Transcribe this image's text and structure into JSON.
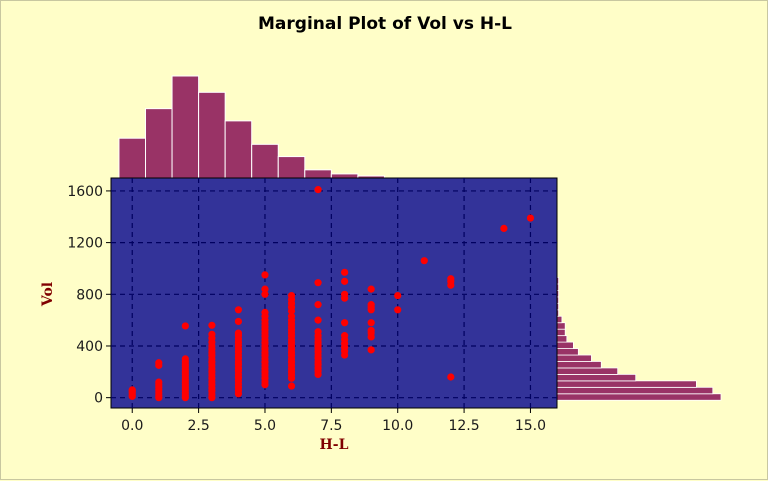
{
  "chart_data": {
    "type": "scatter",
    "title": "Marginal Plot of Vol vs H-L",
    "xlabel": "H-L",
    "ylabel": "Vol",
    "xlim": [
      -0.8,
      16.0
    ],
    "ylim": [
      -80,
      1700
    ],
    "x_ticks": [
      0.0,
      2.5,
      5.0,
      7.5,
      10.0,
      12.5,
      15.0
    ],
    "x_tick_labels": [
      "0.0",
      "2.5",
      "5.0",
      "7.5",
      "10.0",
      "12.5",
      "15.0"
    ],
    "y_ticks": [
      0,
      400,
      800,
      1200,
      1600
    ],
    "y_tick_labels": [
      "0",
      "400",
      "800",
      "1200",
      "1600"
    ],
    "grid": true,
    "colors": {
      "page_background": "#fffec8",
      "plot_background": "#333399",
      "points": "#ff0000",
      "histogram": "#993366",
      "axis_label": "#800000",
      "grid": "#000060"
    },
    "series": [
      {
        "points": [
          {
            "x": 0,
            "y": 10
          },
          {
            "x": 0,
            "y": 20
          },
          {
            "x": 0,
            "y": 35
          },
          {
            "x": 0,
            "y": 50
          },
          {
            "x": 0,
            "y": 60
          },
          {
            "x": 1,
            "y": 0
          },
          {
            "x": 1,
            "y": 20
          },
          {
            "x": 1,
            "y": 40
          },
          {
            "x": 1,
            "y": 60
          },
          {
            "x": 1,
            "y": 80
          },
          {
            "x": 1,
            "y": 100
          },
          {
            "x": 1,
            "y": 120
          },
          {
            "x": 1,
            "y": 250
          },
          {
            "x": 1,
            "y": 270
          },
          {
            "x": 2,
            "y": 0
          },
          {
            "x": 2,
            "y": 20
          },
          {
            "x": 2,
            "y": 40
          },
          {
            "x": 2,
            "y": 60
          },
          {
            "x": 2,
            "y": 80
          },
          {
            "x": 2,
            "y": 100
          },
          {
            "x": 2,
            "y": 120
          },
          {
            "x": 2,
            "y": 140
          },
          {
            "x": 2,
            "y": 160
          },
          {
            "x": 2,
            "y": 180
          },
          {
            "x": 2,
            "y": 200
          },
          {
            "x": 2,
            "y": 220
          },
          {
            "x": 2,
            "y": 240
          },
          {
            "x": 2,
            "y": 260
          },
          {
            "x": 2,
            "y": 280
          },
          {
            "x": 2,
            "y": 300
          },
          {
            "x": 2,
            "y": 555
          },
          {
            "x": 3,
            "y": 0
          },
          {
            "x": 3,
            "y": 25
          },
          {
            "x": 3,
            "y": 50
          },
          {
            "x": 3,
            "y": 75
          },
          {
            "x": 3,
            "y": 100
          },
          {
            "x": 3,
            "y": 125
          },
          {
            "x": 3,
            "y": 150
          },
          {
            "x": 3,
            "y": 175
          },
          {
            "x": 3,
            "y": 200
          },
          {
            "x": 3,
            "y": 225
          },
          {
            "x": 3,
            "y": 250
          },
          {
            "x": 3,
            "y": 275
          },
          {
            "x": 3,
            "y": 300
          },
          {
            "x": 3,
            "y": 325
          },
          {
            "x": 3,
            "y": 350
          },
          {
            "x": 3,
            "y": 375
          },
          {
            "x": 3,
            "y": 400
          },
          {
            "x": 3,
            "y": 430
          },
          {
            "x": 3,
            "y": 460
          },
          {
            "x": 3,
            "y": 490
          },
          {
            "x": 3,
            "y": 560
          },
          {
            "x": 4,
            "y": 30
          },
          {
            "x": 4,
            "y": 55
          },
          {
            "x": 4,
            "y": 80
          },
          {
            "x": 4,
            "y": 105
          },
          {
            "x": 4,
            "y": 130
          },
          {
            "x": 4,
            "y": 155
          },
          {
            "x": 4,
            "y": 180
          },
          {
            "x": 4,
            "y": 205
          },
          {
            "x": 4,
            "y": 230
          },
          {
            "x": 4,
            "y": 255
          },
          {
            "x": 4,
            "y": 280
          },
          {
            "x": 4,
            "y": 305
          },
          {
            "x": 4,
            "y": 330
          },
          {
            "x": 4,
            "y": 355
          },
          {
            "x": 4,
            "y": 380
          },
          {
            "x": 4,
            "y": 405
          },
          {
            "x": 4,
            "y": 430
          },
          {
            "x": 4,
            "y": 455
          },
          {
            "x": 4,
            "y": 480
          },
          {
            "x": 4,
            "y": 500
          },
          {
            "x": 4,
            "y": 590
          },
          {
            "x": 4,
            "y": 680
          },
          {
            "x": 5,
            "y": 100
          },
          {
            "x": 5,
            "y": 125
          },
          {
            "x": 5,
            "y": 150
          },
          {
            "x": 5,
            "y": 175
          },
          {
            "x": 5,
            "y": 200
          },
          {
            "x": 5,
            "y": 225
          },
          {
            "x": 5,
            "y": 250
          },
          {
            "x": 5,
            "y": 275
          },
          {
            "x": 5,
            "y": 300
          },
          {
            "x": 5,
            "y": 325
          },
          {
            "x": 5,
            "y": 350
          },
          {
            "x": 5,
            "y": 375
          },
          {
            "x": 5,
            "y": 400
          },
          {
            "x": 5,
            "y": 425
          },
          {
            "x": 5,
            "y": 450
          },
          {
            "x": 5,
            "y": 475
          },
          {
            "x": 5,
            "y": 500
          },
          {
            "x": 5,
            "y": 525
          },
          {
            "x": 5,
            "y": 550
          },
          {
            "x": 5,
            "y": 575
          },
          {
            "x": 5,
            "y": 600
          },
          {
            "x": 5,
            "y": 630
          },
          {
            "x": 5,
            "y": 660
          },
          {
            "x": 5,
            "y": 800
          },
          {
            "x": 5,
            "y": 840
          },
          {
            "x": 5,
            "y": 950
          },
          {
            "x": 6,
            "y": 90
          },
          {
            "x": 6,
            "y": 150
          },
          {
            "x": 6,
            "y": 175
          },
          {
            "x": 6,
            "y": 200
          },
          {
            "x": 6,
            "y": 225
          },
          {
            "x": 6,
            "y": 250
          },
          {
            "x": 6,
            "y": 275
          },
          {
            "x": 6,
            "y": 300
          },
          {
            "x": 6,
            "y": 325
          },
          {
            "x": 6,
            "y": 350
          },
          {
            "x": 6,
            "y": 375
          },
          {
            "x": 6,
            "y": 400
          },
          {
            "x": 6,
            "y": 425
          },
          {
            "x": 6,
            "y": 450
          },
          {
            "x": 6,
            "y": 475
          },
          {
            "x": 6,
            "y": 500
          },
          {
            "x": 6,
            "y": 525
          },
          {
            "x": 6,
            "y": 550
          },
          {
            "x": 6,
            "y": 575
          },
          {
            "x": 6,
            "y": 600
          },
          {
            "x": 6,
            "y": 630
          },
          {
            "x": 6,
            "y": 670
          },
          {
            "x": 6,
            "y": 700
          },
          {
            "x": 6,
            "y": 730
          },
          {
            "x": 6,
            "y": 760
          },
          {
            "x": 6,
            "y": 790
          },
          {
            "x": 7,
            "y": 180
          },
          {
            "x": 7,
            "y": 205
          },
          {
            "x": 7,
            "y": 230
          },
          {
            "x": 7,
            "y": 255
          },
          {
            "x": 7,
            "y": 280
          },
          {
            "x": 7,
            "y": 305
          },
          {
            "x": 7,
            "y": 330
          },
          {
            "x": 7,
            "y": 355
          },
          {
            "x": 7,
            "y": 380
          },
          {
            "x": 7,
            "y": 405
          },
          {
            "x": 7,
            "y": 430
          },
          {
            "x": 7,
            "y": 455
          },
          {
            "x": 7,
            "y": 480
          },
          {
            "x": 7,
            "y": 510
          },
          {
            "x": 7,
            "y": 600
          },
          {
            "x": 7,
            "y": 720
          },
          {
            "x": 7,
            "y": 890
          },
          {
            "x": 7,
            "y": 1610
          },
          {
            "x": 8,
            "y": 330
          },
          {
            "x": 8,
            "y": 360
          },
          {
            "x": 8,
            "y": 390
          },
          {
            "x": 8,
            "y": 420
          },
          {
            "x": 8,
            "y": 450
          },
          {
            "x": 8,
            "y": 480
          },
          {
            "x": 8,
            "y": 580
          },
          {
            "x": 8,
            "y": 770
          },
          {
            "x": 8,
            "y": 800
          },
          {
            "x": 8,
            "y": 900
          },
          {
            "x": 8,
            "y": 970
          },
          {
            "x": 9,
            "y": 370
          },
          {
            "x": 9,
            "y": 470
          },
          {
            "x": 9,
            "y": 500
          },
          {
            "x": 9,
            "y": 520
          },
          {
            "x": 9,
            "y": 580
          },
          {
            "x": 9,
            "y": 680
          },
          {
            "x": 9,
            "y": 700
          },
          {
            "x": 9,
            "y": 720
          },
          {
            "x": 9,
            "y": 840
          },
          {
            "x": 10,
            "y": 680
          },
          {
            "x": 10,
            "y": 790
          },
          {
            "x": 11,
            "y": 1060
          },
          {
            "x": 12,
            "y": 160
          },
          {
            "x": 12,
            "y": 870
          },
          {
            "x": 12,
            "y": 900
          },
          {
            "x": 12,
            "y": 920
          },
          {
            "x": 14,
            "y": 1310
          },
          {
            "x": 15,
            "y": 1390
          }
        ]
      }
    ],
    "marginal_x_histogram": {
      "bin_starts": [
        0,
        1,
        2,
        3,
        4,
        5,
        6,
        7,
        8,
        9
      ],
      "bin_width": 1,
      "counts": [
        39,
        68,
        100,
        84,
        56,
        33,
        21,
        8,
        4,
        2
      ],
      "count_max": 100
    },
    "marginal_y_histogram": {
      "bin_starts": [
        0,
        50,
        100,
        150,
        200,
        250,
        300,
        350,
        400,
        450,
        500,
        550,
        600,
        650,
        700,
        750,
        800,
        850,
        900
      ],
      "bin_width": 50,
      "counts": [
        100,
        95,
        85,
        48,
        37,
        27,
        21,
        13,
        10,
        6,
        5,
        5,
        3,
        1,
        1,
        1,
        1,
        1,
        1
      ],
      "count_max": 100
    }
  }
}
